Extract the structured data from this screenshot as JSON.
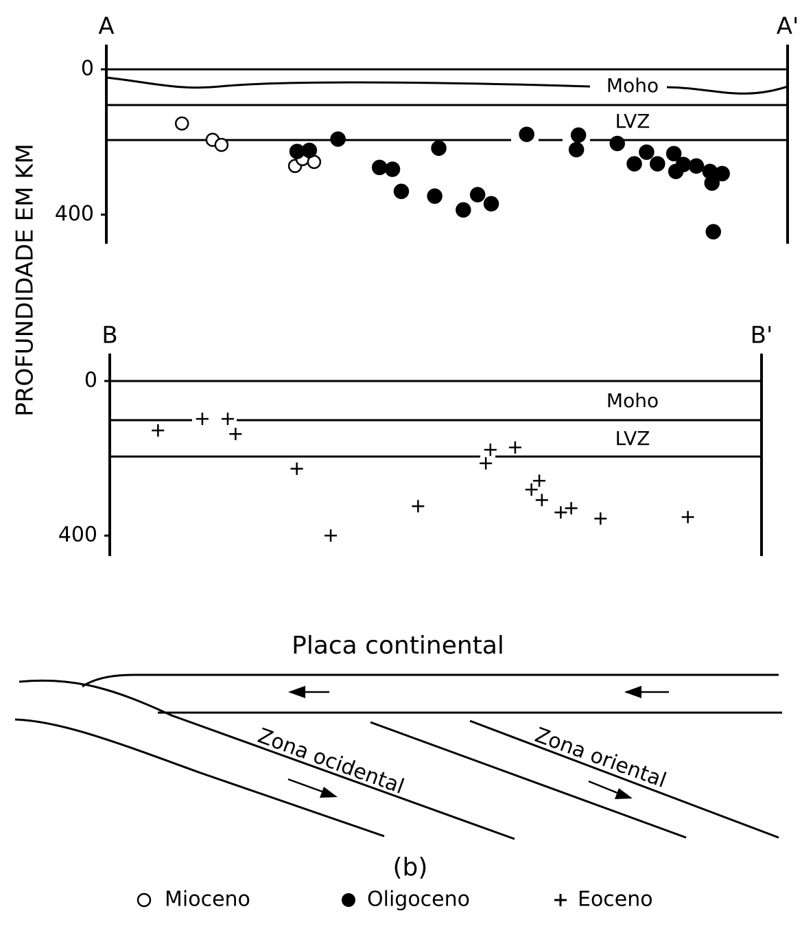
{
  "y_label": "PROFUNDIDADE EM KM",
  "chart_data": [
    {
      "type": "scatter",
      "start_label": "A",
      "end_label": "A'",
      "layer_labels": [
        "Moho",
        "LVZ"
      ],
      "xlim": [
        0,
        100
      ],
      "ylim": [
        -68,
        480
      ],
      "yticks": [
        0,
        400
      ],
      "series": [
        {
          "name": "Mioceno",
          "marker": "open-circle",
          "color": "#000",
          "x": [
            11.1,
            15.6,
            16.9,
            27.7,
            28.8,
            30.5
          ],
          "values": [
            149,
            194,
            208,
            266,
            247,
            255
          ]
        },
        {
          "name": "Oligoceno",
          "marker": "filled-circle",
          "color": "#000",
          "x": [
            28.0,
            29.8,
            34.0,
            40.1,
            42.0,
            43.3,
            48.2,
            48.8,
            52.4,
            54.5,
            56.5,
            61.7,
            69.0,
            69.3,
            75.0,
            77.5,
            79.3,
            80.9,
            83.3,
            83.6,
            84.7,
            86.6,
            88.6,
            88.9,
            90.4,
            89.1
          ],
          "values": [
            226,
            223,
            192,
            270,
            275,
            336,
            349,
            217,
            387,
            345,
            370,
            179,
            221,
            181,
            204,
            260,
            228,
            260,
            232,
            281,
            262,
            266,
            281,
            313,
            287,
            447
          ]
        }
      ]
    },
    {
      "type": "scatter",
      "start_label": "B",
      "end_label": "B'",
      "layer_labels": [
        "Moho",
        "LVZ"
      ],
      "xlim": [
        0,
        100
      ],
      "ylim": [
        -71,
        453
      ],
      "yticks": [
        0,
        400
      ],
      "series": [
        {
          "name": "Eoceno",
          "marker": "plus",
          "color": "#000",
          "x": [
            7.4,
            14.2,
            18.1,
            19.3,
            28.7,
            33.9,
            47.3,
            58.4,
            57.7,
            62.2,
            65.9,
            64.7,
            66.3,
            69.2,
            70.8,
            75.3,
            88.7
          ],
          "values": [
            128,
            98,
            98,
            137,
            227,
            400,
            324,
            178,
            213,
            172,
            258,
            281,
            308,
            340,
            329,
            356,
            352
          ]
        }
      ]
    }
  ],
  "diagram": {
    "plate_label": "Placa continental",
    "west_zone": "Zona ocidental",
    "east_zone": "Zona oriental",
    "caption": "(b)"
  }
}
